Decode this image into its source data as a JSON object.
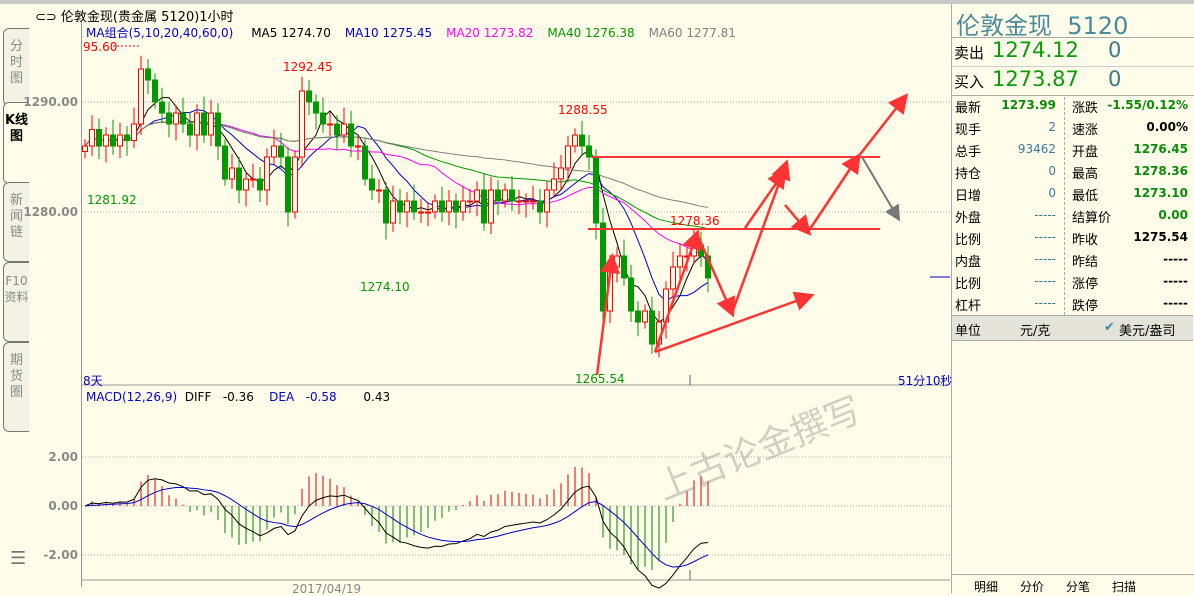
{
  "window": {
    "title": "伦敦金现(贵金属 5120)1小时"
  },
  "left_tabs": [
    {
      "label": "分时图"
    },
    {
      "label": "K线图",
      "active": true
    },
    {
      "label": "新闻链"
    },
    {
      "label": "F10资料"
    },
    {
      "label": "期货圈"
    }
  ],
  "ma_legend": {
    "title": "MA组合(5,10,20,40,60,0)",
    "items": [
      {
        "label": "MA5 1274.70",
        "color": "#000000"
      },
      {
        "label": "MA10 1275.45",
        "color": "#0000cc"
      },
      {
        "label": "MA20 1273.82",
        "color": "#ff00ff"
      },
      {
        "label": "MA40 1276.38",
        "color": "#009900"
      },
      {
        "label": "MA60 1277.81",
        "color": "#808080"
      }
    ]
  },
  "price_axis": {
    "ticks": [
      "1290.00",
      "1280.00"
    ],
    "values": [
      1290,
      1280
    ]
  },
  "price_annotations": [
    {
      "text": "95.60",
      "color": "#ff0000"
    },
    {
      "text": "1292.45",
      "color": "#ff0000"
    },
    {
      "text": "1288.55",
      "color": "#ff0000"
    },
    {
      "text": "1278.36",
      "color": "#ff0000"
    },
    {
      "text": "1281.92",
      "color": "#009900"
    },
    {
      "text": "1274.10",
      "color": "#009900"
    },
    {
      "text": "1265.54",
      "color": "#009900"
    }
  ],
  "period_label": "8天",
  "countdown": "51分10秒",
  "closes": [
    1286,
    1287.5,
    1286,
    1287,
    1286,
    1287,
    1286.5,
    1288,
    1293,
    1292,
    1290,
    1289,
    1288,
    1289,
    1288,
    1287,
    1289,
    1287,
    1289,
    1286,
    1283,
    1284,
    1282,
    1283,
    1283,
    1282,
    1285,
    1286,
    1285,
    1280,
    1285,
    1291,
    1290,
    1289,
    1288,
    1288,
    1287,
    1288,
    1286,
    1286,
    1283,
    1282,
    1282,
    1279,
    1281,
    1280,
    1281,
    1280,
    1280,
    1280,
    1281,
    1280,
    1281,
    1280,
    1281,
    1281,
    1282,
    1279,
    1282,
    1281,
    1282,
    1281,
    1281,
    1281,
    1281,
    1280,
    1282,
    1283,
    1284,
    1286,
    1287,
    1286,
    1285,
    1279,
    1271,
    1275,
    1276,
    1274,
    1271,
    1270,
    1271,
    1268,
    1270,
    1273,
    1275,
    1276,
    1276,
    1277,
    1276,
    1274
  ],
  "macd": {
    "title": "MACD(12,26,9)",
    "diff_label": "DIFF",
    "diff": "-0.36",
    "dea_label": "DEA",
    "dea": "-0.58",
    "macd": "0.43",
    "ticks": [
      "2.00",
      "0.00",
      "-2.00"
    ]
  },
  "date_label": "2017/04/19",
  "watermark": "上古论金撰写",
  "quote": {
    "name": "伦敦金现",
    "code": "5120",
    "sell": {
      "label": "卖出",
      "price": "1274.12",
      "vol": "0"
    },
    "buy": {
      "label": "买入",
      "price": "1273.87",
      "vol": "0"
    },
    "left": [
      {
        "k": "最新",
        "v": "1273.99",
        "c": "g"
      },
      {
        "k": "现手",
        "v": "2",
        "c": "b"
      },
      {
        "k": "总手",
        "v": "93462",
        "c": "b"
      },
      {
        "k": "持仓",
        "v": "0",
        "c": "b"
      },
      {
        "k": "日增",
        "v": "0",
        "c": "b"
      },
      {
        "k": "外盘",
        "v": "-----",
        "c": "b"
      },
      {
        "k": "比例",
        "v": "-----",
        "c": "b"
      },
      {
        "k": "内盘",
        "v": "-----",
        "c": "b"
      },
      {
        "k": "比例",
        "v": "-----",
        "c": "b"
      },
      {
        "k": "杠杆",
        "v": "-----",
        "c": "b"
      }
    ],
    "right": [
      {
        "k": "涨跌",
        "v": "-1.55/0.12%",
        "c": "g"
      },
      {
        "k": "速涨",
        "v": "0.00%",
        "c": "bk"
      },
      {
        "k": "开盘",
        "v": "1276.45",
        "c": "g"
      },
      {
        "k": "最高",
        "v": "1278.36",
        "c": "g"
      },
      {
        "k": "最低",
        "v": "1273.10",
        "c": "g"
      },
      {
        "k": "结算价",
        "v": "0.00",
        "c": "g"
      },
      {
        "k": "昨收",
        "v": "1275.54",
        "c": "bk"
      },
      {
        "k": "昨结",
        "v": "-----",
        "c": "bk"
      },
      {
        "k": "涨停",
        "v": "-----",
        "c": "bk"
      },
      {
        "k": "跌停",
        "v": "-----",
        "c": "bk"
      }
    ],
    "unit_label": "单位",
    "unit_a": "元/克",
    "unit_b": "美元/盎司"
  },
  "bottom_tabs": [
    {
      "label": "明细"
    },
    {
      "label": "分价"
    },
    {
      "label": "分笔"
    },
    {
      "label": "扫描"
    }
  ]
}
